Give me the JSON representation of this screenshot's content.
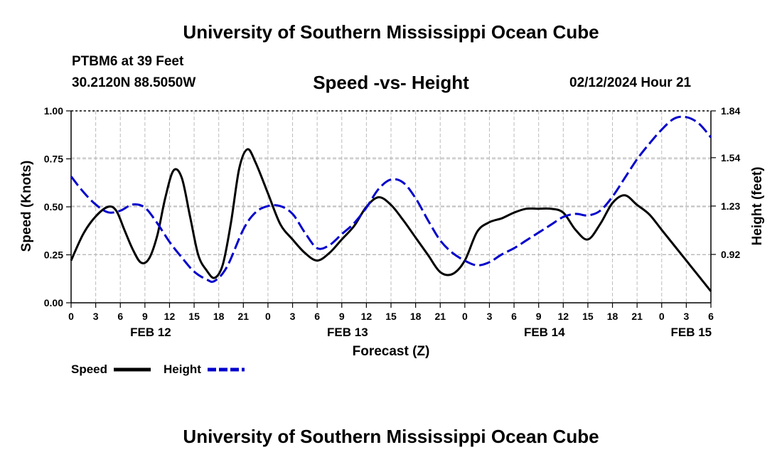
{
  "header": {
    "title": "University of Southern Mississippi Ocean Cube",
    "station": "PTBM6 at 39 Feet",
    "coordinates": "30.2120N  88.5050W",
    "timestamp": "02/12/2024 Hour 21",
    "footer_title": "University of Southern Mississippi Ocean Cube"
  },
  "chart_data": {
    "type": "line",
    "title": "Speed -vs- Height",
    "xlabel": "Forecast (Z)",
    "ylabel": "Speed (Knots)",
    "y2label": "Height (feet)",
    "x_range_hours": [
      0,
      78
    ],
    "ylim": [
      0,
      1.0
    ],
    "y2lim": [
      0.61,
      1.84
    ],
    "y_ticks": [
      "0.00",
      "0.25",
      "0.50",
      "0.75",
      "1.00"
    ],
    "y2_ticks": [
      "0.92",
      "1.23",
      "1.54",
      "1.84"
    ],
    "x_tick_labels": [
      "0",
      "3",
      "6",
      "9",
      "12",
      "15",
      "18",
      "21",
      "0",
      "3",
      "6",
      "9",
      "12",
      "15",
      "18",
      "21",
      "0",
      "3",
      "6",
      "9",
      "12",
      "15",
      "18",
      "21",
      "0",
      "3",
      "6"
    ],
    "day_labels": [
      {
        "label": "FEB 12",
        "hour": 9.7
      },
      {
        "label": "FEB 13",
        "hour": 33.7
      },
      {
        "label": "FEB 14",
        "hour": 57.7
      },
      {
        "label": "FEB 15",
        "hour": 75.6
      }
    ],
    "grid": true,
    "legend": "bottom-left",
    "colors": {
      "speed": "#000000",
      "height": "#0000cc",
      "grid": "#bbbbbb"
    },
    "series": [
      {
        "name": "Speed",
        "axis": "left",
        "color": "#000000",
        "dash": "solid",
        "x": [
          0,
          1.5,
          3,
          4.5,
          5.5,
          6.5,
          7.5,
          8.5,
          9.5,
          10.5,
          11.5,
          12.5,
          13.5,
          14.5,
          15.5,
          16.5,
          17.5,
          18.5,
          19.5,
          20.5,
          21.5,
          22.5,
          24,
          25.5,
          27,
          28.5,
          30,
          31.5,
          33,
          34.5,
          36,
          37.5,
          39,
          40.5,
          42,
          43.5,
          45,
          46.5,
          48,
          49.5,
          51,
          52.5,
          54,
          55.5,
          57,
          58.5,
          60,
          61.5,
          63,
          64.5,
          66,
          67.5,
          69,
          70.5,
          72,
          73.5,
          75,
          76.5,
          78
        ],
        "values": [
          0.22,
          0.36,
          0.45,
          0.5,
          0.48,
          0.38,
          0.28,
          0.21,
          0.23,
          0.35,
          0.55,
          0.69,
          0.65,
          0.45,
          0.25,
          0.17,
          0.13,
          0.2,
          0.42,
          0.7,
          0.8,
          0.73,
          0.57,
          0.41,
          0.33,
          0.26,
          0.22,
          0.26,
          0.33,
          0.4,
          0.5,
          0.55,
          0.51,
          0.43,
          0.34,
          0.25,
          0.16,
          0.15,
          0.22,
          0.37,
          0.42,
          0.44,
          0.47,
          0.49,
          0.49,
          0.49,
          0.47,
          0.38,
          0.33,
          0.41,
          0.52,
          0.56,
          0.51,
          0.46,
          0.38,
          0.3,
          0.22,
          0.14,
          0.06
        ]
      },
      {
        "name": "Height",
        "axis": "right",
        "color": "#0000cc",
        "dash": "dashed",
        "x": [
          0,
          1.5,
          3,
          4.5,
          6,
          7.5,
          9,
          10.5,
          12,
          13.5,
          15,
          16.5,
          17.5,
          19,
          21,
          22.5,
          24,
          25.5,
          27,
          28.5,
          30,
          31.5,
          33,
          34.5,
          36,
          37.5,
          39,
          40.5,
          42,
          43.5,
          45,
          46.5,
          48,
          49.5,
          51,
          52.5,
          54,
          55.5,
          57,
          58.5,
          60,
          61.5,
          63,
          64.5,
          66,
          67.5,
          69,
          70.5,
          72,
          73.5,
          75,
          76.5,
          78
        ],
        "values": [
          1.42,
          1.32,
          1.24,
          1.19,
          1.2,
          1.24,
          1.22,
          1.12,
          1.0,
          0.9,
          0.81,
          0.76,
          0.75,
          0.84,
          1.08,
          1.19,
          1.23,
          1.23,
          1.18,
          1.06,
          0.96,
          0.98,
          1.05,
          1.12,
          1.22,
          1.34,
          1.4,
          1.38,
          1.28,
          1.14,
          1.01,
          0.93,
          0.88,
          0.85,
          0.87,
          0.92,
          0.96,
          1.01,
          1.06,
          1.11,
          1.16,
          1.18,
          1.17,
          1.2,
          1.29,
          1.41,
          1.53,
          1.63,
          1.72,
          1.79,
          1.8,
          1.76,
          1.67
        ]
      }
    ]
  }
}
